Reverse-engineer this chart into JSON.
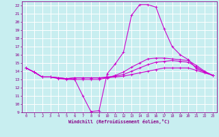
{
  "title": "",
  "xlabel": "Windchill (Refroidissement éolien,°C)",
  "background_color": "#c8eef0",
  "grid_color": "#ffffff",
  "line_color": "#cc00cc",
  "xlim": [
    -0.5,
    23.5
  ],
  "ylim": [
    9,
    22.5
  ],
  "xticks": [
    0,
    1,
    2,
    3,
    4,
    5,
    6,
    7,
    8,
    9,
    10,
    11,
    12,
    13,
    14,
    15,
    16,
    17,
    18,
    19,
    20,
    21,
    22,
    23
  ],
  "yticks": [
    9,
    10,
    11,
    12,
    13,
    14,
    15,
    16,
    17,
    18,
    19,
    20,
    21,
    22
  ],
  "lines": [
    {
      "x": [
        0,
        1,
        2,
        3,
        4,
        5,
        6,
        7,
        8,
        9,
        10,
        11,
        12,
        13,
        14,
        15,
        16,
        17,
        18,
        19,
        20,
        21,
        22,
        23
      ],
      "y": [
        14.4,
        13.9,
        13.3,
        13.3,
        13.2,
        13.1,
        13.0,
        11.0,
        9.1,
        9.2,
        13.7,
        14.9,
        16.3,
        20.8,
        22.1,
        22.1,
        21.8,
        19.2,
        17.0,
        16.0,
        15.4,
        14.3,
        13.9,
        13.5
      ]
    },
    {
      "x": [
        0,
        1,
        2,
        3,
        4,
        5,
        6,
        7,
        8,
        9,
        10,
        11,
        12,
        13,
        14,
        15,
        16,
        17,
        18,
        19,
        20,
        21,
        22,
        23
      ],
      "y": [
        14.4,
        13.9,
        13.3,
        13.3,
        13.2,
        13.1,
        13.2,
        13.2,
        13.2,
        13.2,
        13.2,
        13.3,
        13.4,
        13.6,
        13.8,
        14.0,
        14.2,
        14.4,
        14.4,
        14.4,
        14.4,
        14.1,
        13.8,
        13.5
      ]
    },
    {
      "x": [
        0,
        1,
        2,
        3,
        4,
        5,
        6,
        7,
        8,
        9,
        10,
        11,
        12,
        13,
        14,
        15,
        16,
        17,
        18,
        19,
        20,
        21,
        22,
        23
      ],
      "y": [
        14.4,
        13.9,
        13.3,
        13.3,
        13.2,
        13.1,
        13.2,
        13.2,
        13.2,
        13.2,
        13.3,
        13.4,
        13.6,
        14.0,
        14.4,
        14.8,
        15.1,
        15.2,
        15.3,
        15.2,
        15.1,
        14.5,
        13.9,
        13.5
      ]
    },
    {
      "x": [
        0,
        1,
        2,
        3,
        4,
        5,
        6,
        7,
        8,
        9,
        10,
        11,
        12,
        13,
        14,
        15,
        16,
        17,
        18,
        19,
        20,
        21,
        22,
        23
      ],
      "y": [
        14.4,
        13.9,
        13.3,
        13.3,
        13.1,
        13.0,
        13.0,
        13.0,
        13.0,
        13.0,
        13.2,
        13.5,
        13.9,
        14.5,
        15.0,
        15.5,
        15.6,
        15.6,
        15.5,
        15.4,
        15.3,
        14.7,
        14.0,
        13.5
      ]
    }
  ]
}
